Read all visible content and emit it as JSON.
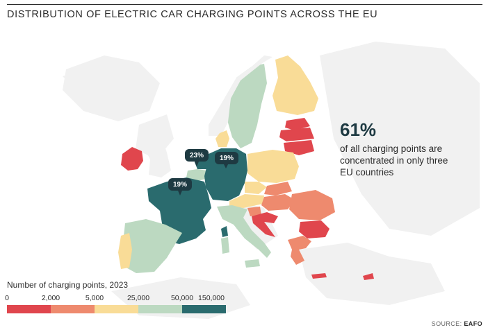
{
  "title": "DISTRIBUTION OF ELECTRIC CAR CHARGING POINTS ACROSS THE EU",
  "highlight": {
    "value": "61%",
    "text": "of all charging points are concentrated in only three EU countries"
  },
  "badges": {
    "netherlands": "23%",
    "germany": "19%",
    "france": "19%"
  },
  "legend": {
    "title": "Number of charging points, 2023",
    "ticks": [
      "0",
      "2,000",
      "5,000",
      "25,000",
      "50,000",
      "150,000"
    ],
    "colors": [
      "#e0464d",
      "#ee8a6e",
      "#f9dc97",
      "#bcd9c1",
      "#2a6b6e"
    ]
  },
  "source": {
    "label": "SOURCE:",
    "value": "EAFO"
  }
}
